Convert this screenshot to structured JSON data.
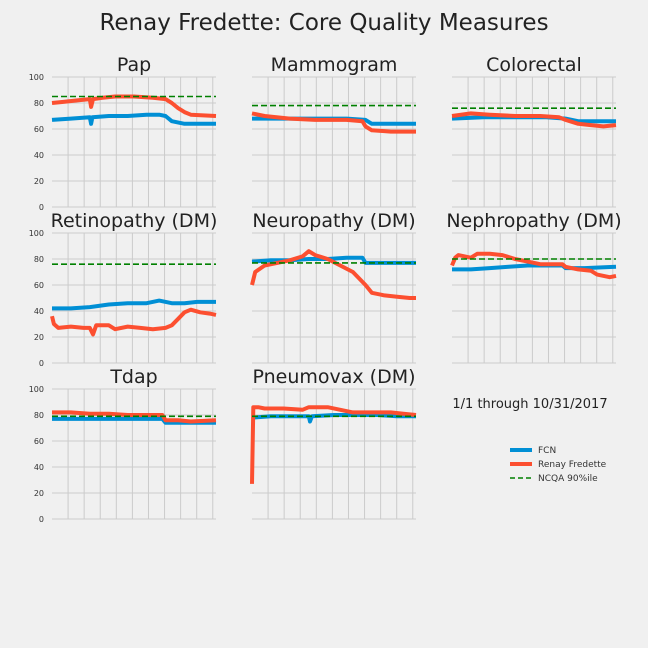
{
  "title": "Renay Fredette: Core Quality Measures",
  "note": "1/1 through 10/31/2017",
  "colors": {
    "fcn": "#008fd5",
    "provider": "#fc4f30",
    "ncqa": "#008000",
    "grid": "#cbcbcb",
    "background": "#f0f0f0"
  },
  "legend": [
    {
      "key": "fcn",
      "label": "FCN"
    },
    {
      "key": "provider",
      "label": "Renay Fredette"
    },
    {
      "key": "ncqa",
      "label": "NCQA 90%ile"
    }
  ],
  "chart_data": {
    "type": "line",
    "layout": "3x3 small multiples",
    "ylim": [
      0,
      100
    ],
    "y_ticks": [
      0,
      20,
      40,
      60,
      80,
      100
    ],
    "x_gridlines": 10,
    "legend_position": "right-middle",
    "panels": [
      {
        "title": "Pap",
        "ncqa": 85,
        "fcn": [
          [
            0,
            67
          ],
          [
            0.3,
            68
          ],
          [
            0.6,
            69
          ],
          [
            0.62,
            64
          ],
          [
            0.64,
            69
          ],
          [
            0.9,
            70
          ],
          [
            1.2,
            70
          ],
          [
            1.5,
            71
          ],
          [
            1.7,
            71
          ],
          [
            1.8,
            70
          ],
          [
            1.9,
            66
          ],
          [
            2.1,
            64
          ],
          [
            2.6,
            64
          ]
        ],
        "provider": [
          [
            0,
            80
          ],
          [
            0.2,
            81
          ],
          [
            0.4,
            82
          ],
          [
            0.6,
            83
          ],
          [
            0.62,
            77
          ],
          [
            0.65,
            83
          ],
          [
            0.8,
            84
          ],
          [
            1.0,
            85
          ],
          [
            1.3,
            85
          ],
          [
            1.6,
            84
          ],
          [
            1.8,
            83
          ],
          [
            1.9,
            80
          ],
          [
            2.0,
            76
          ],
          [
            2.1,
            73
          ],
          [
            2.2,
            71
          ],
          [
            2.6,
            70
          ]
        ]
      },
      {
        "title": "Mammogram",
        "ncqa": 78,
        "fcn": [
          [
            0,
            68
          ],
          [
            0.5,
            68
          ],
          [
            1.0,
            68
          ],
          [
            1.5,
            68
          ],
          [
            1.8,
            67
          ],
          [
            1.9,
            64
          ],
          [
            2.1,
            64
          ],
          [
            2.6,
            64
          ]
        ],
        "provider": [
          [
            0,
            72
          ],
          [
            0.2,
            70
          ],
          [
            0.6,
            68
          ],
          [
            1.0,
            67
          ],
          [
            1.5,
            67
          ],
          [
            1.75,
            66
          ],
          [
            1.8,
            62
          ],
          [
            1.9,
            59
          ],
          [
            2.2,
            58
          ],
          [
            2.6,
            58
          ]
        ]
      },
      {
        "title": "Colorectal",
        "ncqa": 76,
        "fcn": [
          [
            0,
            68
          ],
          [
            0.5,
            69
          ],
          [
            1.0,
            69
          ],
          [
            1.5,
            69
          ],
          [
            1.8,
            68
          ],
          [
            2.0,
            66
          ],
          [
            2.6,
            66
          ]
        ],
        "provider": [
          [
            0,
            70
          ],
          [
            0.3,
            72
          ],
          [
            0.6,
            71
          ],
          [
            1.0,
            70
          ],
          [
            1.4,
            70
          ],
          [
            1.7,
            69
          ],
          [
            1.8,
            67
          ],
          [
            2.0,
            64
          ],
          [
            2.2,
            63
          ],
          [
            2.4,
            62
          ],
          [
            2.6,
            63
          ]
        ]
      },
      {
        "title": "Retinopathy (DM)",
        "ncqa": 76,
        "fcn": [
          [
            0,
            42
          ],
          [
            0.3,
            42
          ],
          [
            0.6,
            43
          ],
          [
            0.9,
            45
          ],
          [
            1.2,
            46
          ],
          [
            1.5,
            46
          ],
          [
            1.7,
            48
          ],
          [
            1.9,
            46
          ],
          [
            2.1,
            46
          ],
          [
            2.3,
            47
          ],
          [
            2.6,
            47
          ]
        ],
        "provider": [
          [
            0,
            36
          ],
          [
            0.03,
            30
          ],
          [
            0.1,
            27
          ],
          [
            0.3,
            28
          ],
          [
            0.5,
            27
          ],
          [
            0.6,
            27
          ],
          [
            0.65,
            22
          ],
          [
            0.7,
            29
          ],
          [
            0.9,
            29
          ],
          [
            1.0,
            26
          ],
          [
            1.2,
            28
          ],
          [
            1.4,
            27
          ],
          [
            1.6,
            26
          ],
          [
            1.8,
            27
          ],
          [
            1.9,
            29
          ],
          [
            2.0,
            34
          ],
          [
            2.1,
            39
          ],
          [
            2.2,
            41
          ],
          [
            2.35,
            39
          ],
          [
            2.5,
            38
          ],
          [
            2.6,
            37
          ]
        ]
      },
      {
        "title": "Neuropathy (DM)",
        "ncqa": 77,
        "fcn": [
          [
            0,
            78
          ],
          [
            0.3,
            79
          ],
          [
            0.6,
            79
          ],
          [
            0.9,
            80
          ],
          [
            1.2,
            80
          ],
          [
            1.5,
            81
          ],
          [
            1.75,
            81
          ],
          [
            1.8,
            77
          ],
          [
            2.2,
            77
          ],
          [
            2.6,
            77
          ]
        ],
        "provider": [
          [
            0,
            60
          ],
          [
            0.05,
            70
          ],
          [
            0.2,
            75
          ],
          [
            0.4,
            77
          ],
          [
            0.6,
            79
          ],
          [
            0.8,
            82
          ],
          [
            0.9,
            86
          ],
          [
            1.0,
            83
          ],
          [
            1.2,
            80
          ],
          [
            1.4,
            75
          ],
          [
            1.6,
            70
          ],
          [
            1.8,
            60
          ],
          [
            1.9,
            54
          ],
          [
            2.1,
            52
          ],
          [
            2.3,
            51
          ],
          [
            2.5,
            50
          ],
          [
            2.6,
            50
          ]
        ]
      },
      {
        "title": "Nephropathy (DM)",
        "ncqa": 80,
        "fcn": [
          [
            0,
            72
          ],
          [
            0.3,
            72
          ],
          [
            0.6,
            73
          ],
          [
            0.9,
            74
          ],
          [
            1.2,
            75
          ],
          [
            1.5,
            75
          ],
          [
            1.75,
            75
          ],
          [
            1.8,
            73
          ],
          [
            2.1,
            73
          ],
          [
            2.6,
            74
          ]
        ],
        "provider": [
          [
            0,
            75
          ],
          [
            0.05,
            81
          ],
          [
            0.1,
            83
          ],
          [
            0.3,
            81
          ],
          [
            0.4,
            84
          ],
          [
            0.6,
            84
          ],
          [
            0.8,
            83
          ],
          [
            1.0,
            80
          ],
          [
            1.2,
            78
          ],
          [
            1.4,
            76
          ],
          [
            1.6,
            76
          ],
          [
            1.75,
            76
          ],
          [
            1.8,
            74
          ],
          [
            2.0,
            72
          ],
          [
            2.2,
            71
          ],
          [
            2.3,
            68
          ],
          [
            2.5,
            66
          ],
          [
            2.6,
            67
          ]
        ]
      },
      {
        "title": "Tdap",
        "ncqa": 79,
        "fcn": [
          [
            0,
            77
          ],
          [
            0.5,
            77
          ],
          [
            1.0,
            77
          ],
          [
            1.5,
            77
          ],
          [
            1.75,
            77
          ],
          [
            1.8,
            74
          ],
          [
            2.2,
            74
          ],
          [
            2.6,
            74
          ]
        ],
        "provider": [
          [
            0,
            82
          ],
          [
            0.3,
            82
          ],
          [
            0.6,
            81
          ],
          [
            0.9,
            81
          ],
          [
            1.2,
            80
          ],
          [
            1.5,
            80
          ],
          [
            1.75,
            80
          ],
          [
            1.8,
            76
          ],
          [
            2.0,
            76
          ],
          [
            2.2,
            75
          ],
          [
            2.6,
            76
          ]
        ]
      },
      {
        "title": "Pneumovax (DM)",
        "ncqa": 79,
        "fcn": [
          [
            0,
            78
          ],
          [
            0.3,
            79
          ],
          [
            0.6,
            79
          ],
          [
            0.9,
            79
          ],
          [
            0.92,
            75
          ],
          [
            0.95,
            79
          ],
          [
            1.3,
            80
          ],
          [
            1.6,
            80
          ],
          [
            2.0,
            80
          ],
          [
            2.3,
            79
          ],
          [
            2.6,
            79
          ]
        ],
        "provider": [
          [
            0,
            27
          ],
          [
            0.02,
            86
          ],
          [
            0.1,
            86
          ],
          [
            0.2,
            85
          ],
          [
            0.5,
            85
          ],
          [
            0.8,
            84
          ],
          [
            0.9,
            86
          ],
          [
            1.2,
            86
          ],
          [
            1.4,
            84
          ],
          [
            1.6,
            82
          ],
          [
            1.9,
            82
          ],
          [
            2.2,
            82
          ],
          [
            2.4,
            81
          ],
          [
            2.6,
            80
          ]
        ]
      }
    ]
  }
}
